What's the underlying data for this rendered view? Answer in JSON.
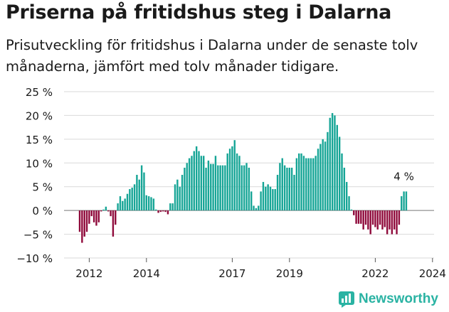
{
  "title": "Priserna på fritidshus steg i Dalarna",
  "subtitle": "Prisutveckling för fritidshus i Dalarna under de senaste tolv månaderna, jämfört med tolv månader tidigare.",
  "brand": {
    "name": "Newsworthy",
    "color": "#2ab3a3"
  },
  "colors": {
    "positive": "#16a596",
    "negative": "#8f0a3b",
    "grid": "#d9d9d9",
    "text": "#1a1a1a"
  },
  "chart_data": {
    "type": "bar",
    "x_start": "2011-09",
    "x_interval": "month",
    "ylim": [
      -10,
      25
    ],
    "yticks": [
      -10,
      -5,
      0,
      5,
      10,
      15,
      20,
      25
    ],
    "ytick_labels": [
      "−10 %",
      "−5 %",
      "0 %",
      "5 %",
      "10 %",
      "15 %",
      "20 %",
      "25 %"
    ],
    "xticks": [
      {
        "label": "2012",
        "date": "2012-01"
      },
      {
        "label": "2014",
        "date": "2014-01"
      },
      {
        "label": "2017",
        "date": "2017-01"
      },
      {
        "label": "2019",
        "date": "2019-01"
      },
      {
        "label": "2022",
        "date": "2022-01"
      },
      {
        "label": "2024",
        "date": "2024-01"
      }
    ],
    "annotation": {
      "text": "4 %"
    },
    "values": [
      -4.5,
      -6.8,
      -5.5,
      -4.5,
      -2.8,
      -1.2,
      -2.5,
      -3.2,
      -2.5,
      -0.2,
      0.2,
      0.8,
      -0.2,
      -1.2,
      -5.5,
      -3,
      1.5,
      3,
      2,
      2.5,
      3.5,
      4.5,
      4.8,
      5.5,
      7.5,
      6.5,
      9.5,
      8,
      3.2,
      3,
      2.8,
      2.5,
      0.2,
      -0.5,
      -0.3,
      -0.2,
      -0.3,
      -0.8,
      1.5,
      1.5,
      5.5,
      6.5,
      5,
      7.5,
      9,
      10,
      11,
      11.5,
      12.5,
      13.5,
      12.5,
      11.5,
      11.5,
      9,
      10.5,
      9.8,
      9.8,
      11.5,
      9.5,
      9.5,
      9.5,
      9.5,
      12,
      13,
      13.5,
      14.8,
      12,
      11.5,
      9.5,
      9.5,
      10,
      9,
      4,
      1,
      0.5,
      1,
      4,
      6,
      5,
      5.5,
      5,
      4.5,
      4.5,
      7.5,
      10,
      11,
      9.5,
      9,
      9,
      9,
      7.5,
      11,
      12,
      12,
      11.5,
      11,
      11,
      11,
      11,
      11.5,
      13,
      14,
      15,
      14.5,
      16.5,
      19.5,
      20.5,
      20,
      18,
      15.5,
      12,
      9,
      6,
      3,
      0.2,
      -1,
      -2.8,
      -2.8,
      -2.8,
      -4,
      -3,
      -4,
      -5,
      -3,
      -3.5,
      -4,
      -3,
      -4,
      -3.5,
      -5,
      -4,
      -5,
      -4,
      -5,
      -3,
      3,
      4,
      4
    ]
  }
}
